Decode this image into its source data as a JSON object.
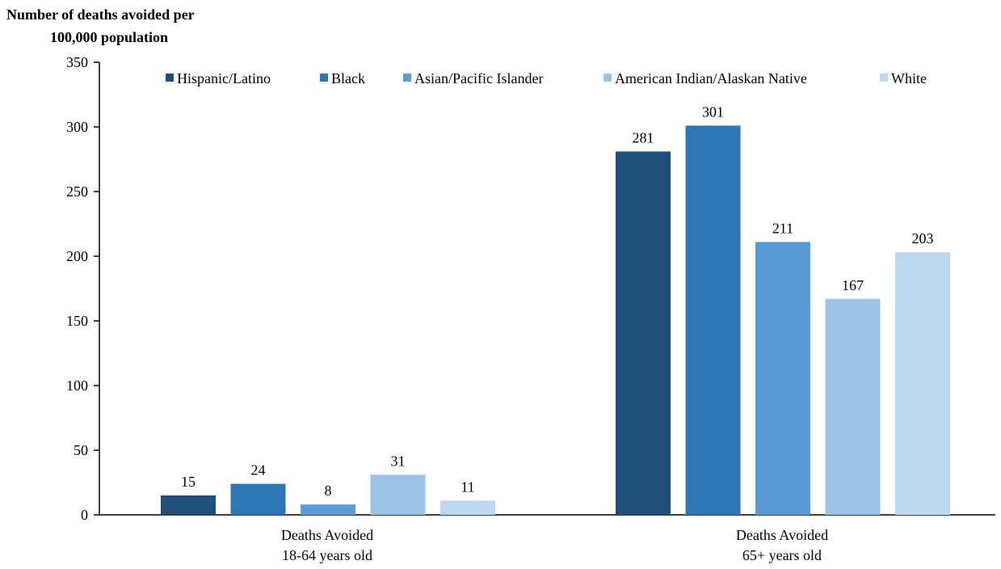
{
  "chart_data": {
    "type": "bar",
    "ylabel_lines": [
      "Number of deaths avoided per",
      "100,000 population"
    ],
    "categories": [
      [
        "Deaths Avoided",
        "18-64 years old"
      ],
      [
        "Deaths Avoided",
        "65+ years old"
      ]
    ],
    "ylim": [
      0,
      350
    ],
    "yticks": [
      0,
      50,
      100,
      150,
      200,
      250,
      300,
      350
    ],
    "grid": false,
    "legend_position": "top",
    "series": [
      {
        "name": "Hispanic/Latino",
        "color": "#1f4e79",
        "values": [
          15,
          281
        ]
      },
      {
        "name": "Black",
        "color": "#2e75b6",
        "values": [
          24,
          301
        ]
      },
      {
        "name": "Asian/Pacific Islander",
        "color": "#5b9bd5",
        "values": [
          8,
          211
        ]
      },
      {
        "name": "American Indian/Alaskan Native",
        "color": "#9dc3e6",
        "values": [
          31,
          167
        ]
      },
      {
        "name": "White",
        "color": "#bdd7ee",
        "values": [
          11,
          203
        ]
      }
    ]
  }
}
